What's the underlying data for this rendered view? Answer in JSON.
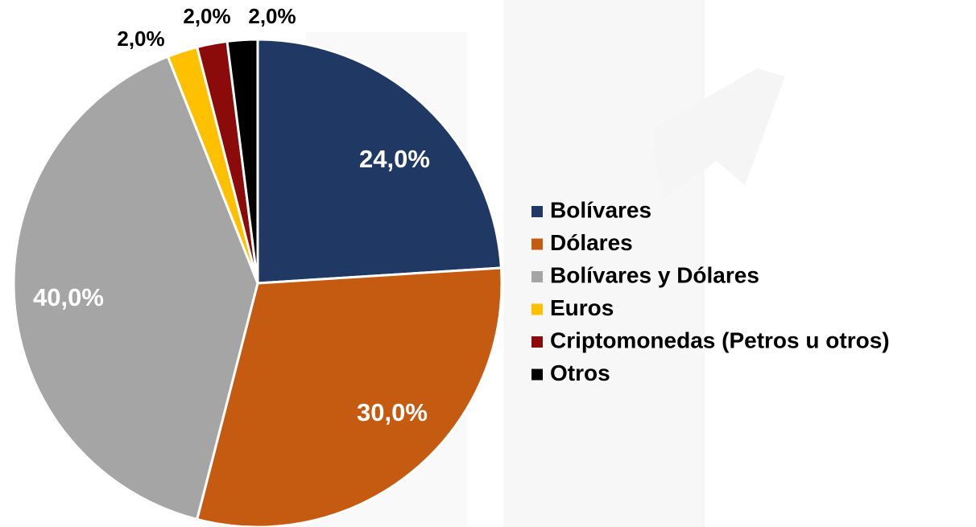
{
  "chart_data": {
    "type": "pie",
    "categories": [
      "Bolívares",
      "Dólares",
      "Bolívares y Dólares",
      "Euros",
      "Criptomonedas (Petros u otros)",
      "Otros"
    ],
    "values": [
      24,
      30,
      40,
      2,
      2,
      2
    ],
    "value_labels": [
      "24,0%",
      "30,0%",
      "40,0%",
      "2,0%",
      "2,0%",
      "2,0%"
    ],
    "colors": [
      "#203864",
      "#c55a11",
      "#a5a5a5",
      "#ffc000",
      "#8b0a0a",
      "#000000"
    ],
    "legend": "right"
  }
}
